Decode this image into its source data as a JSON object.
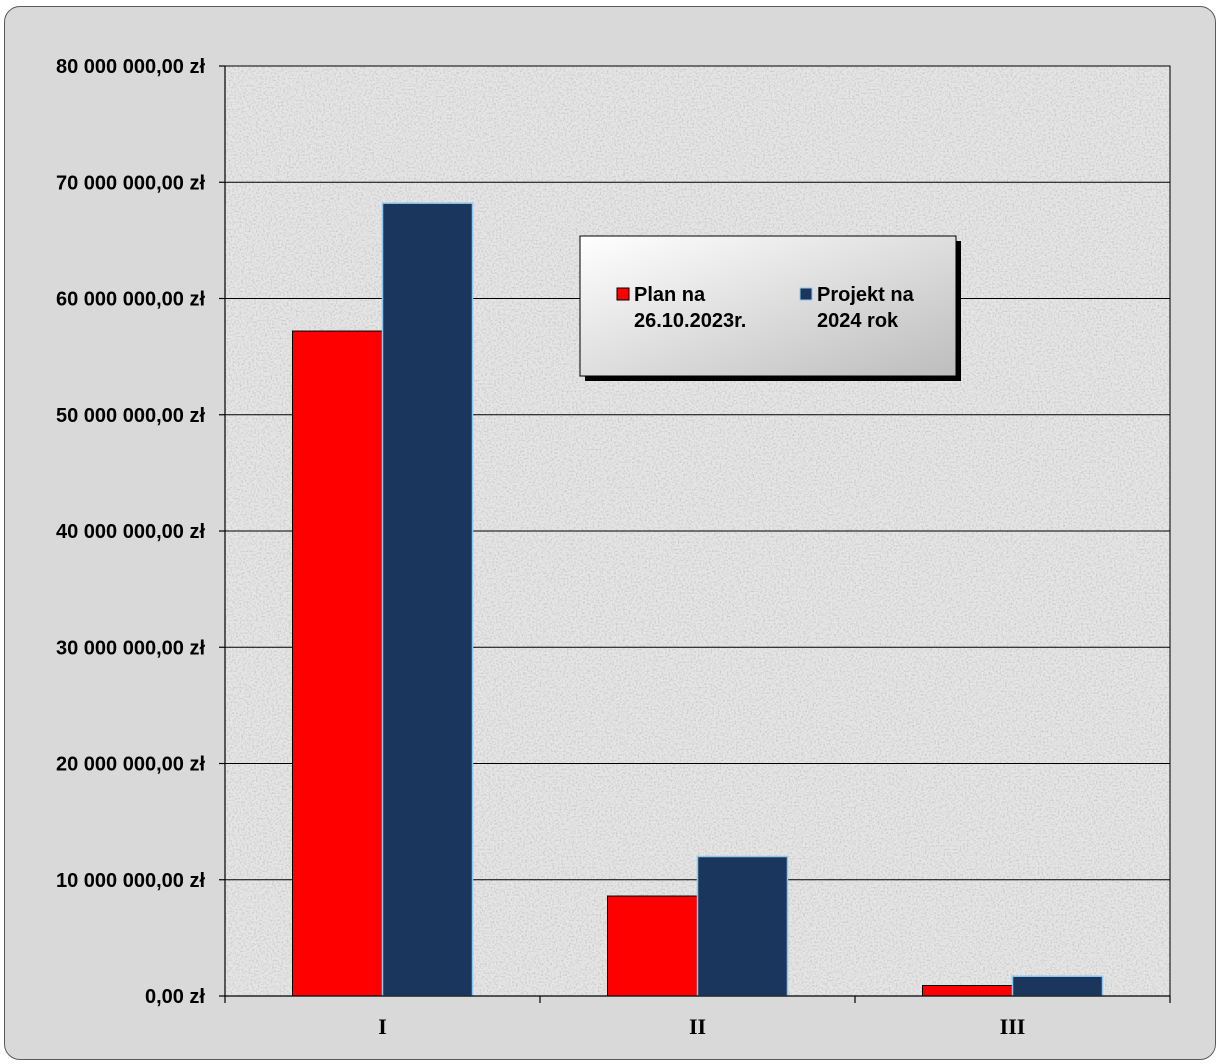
{
  "chart_data": {
    "type": "bar",
    "categories": [
      "I",
      "II",
      "III"
    ],
    "series": [
      {
        "name": "Plan na 26.10.2023r.",
        "name_lines": [
          "Plan na",
          "26.10.2023r."
        ],
        "color": "#ff0000",
        "values": [
          57200000,
          8600000,
          900000
        ]
      },
      {
        "name": "Projekt na 2024 rok",
        "name_lines": [
          "Projekt na",
          "2024 rok"
        ],
        "color": "#1b365d",
        "values": [
          68200000,
          12000000,
          1700000
        ]
      }
    ],
    "ylim": [
      0,
      80000000
    ],
    "yticks": [
      0,
      10000000,
      20000000,
      30000000,
      40000000,
      50000000,
      60000000,
      70000000,
      80000000
    ],
    "ytick_labels": [
      "0,00 zł",
      "10 000 000,00 zł",
      "20 000 000,00 zł",
      "30 000 000,00 zł",
      "40 000 000,00 zł",
      "50 000 000,00 zł",
      "60 000 000,00 zł",
      "70 000 000,00 zł",
      "80 000 000,00 zł"
    ],
    "grid": true,
    "legend_position": "top-right",
    "plot_background": "#e6e6e6",
    "frame_background": "#d9d9d9"
  }
}
